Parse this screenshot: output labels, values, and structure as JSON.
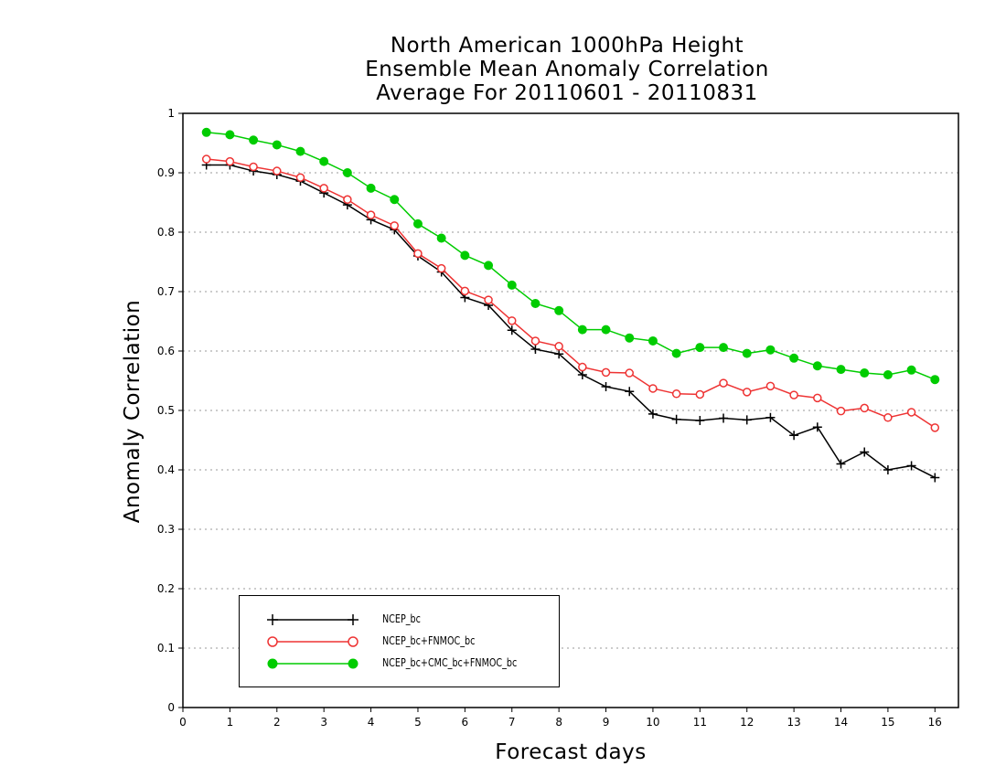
{
  "chart_data": {
    "type": "line",
    "title": [
      "North American 1000hPa Height",
      "Ensemble Mean Anomaly Correlation",
      "Average For 20110601 - 20110831"
    ],
    "xlabel": "Forecast days",
    "ylabel": "Anomaly Correlation",
    "xlim": [
      0,
      16.5
    ],
    "ylim": [
      0,
      1
    ],
    "xticks": [
      "0",
      "1",
      "2",
      "3",
      "4",
      "5",
      "6",
      "7",
      "8",
      "9",
      "10",
      "11",
      "12",
      "13",
      "14",
      "15",
      "16"
    ],
    "yticks": [
      "0",
      "0.1",
      "0.2",
      "0.3",
      "0.4",
      "0.5",
      "0.6",
      "0.7",
      "0.8",
      "0.9",
      "1"
    ],
    "grid": "horizontal dotted",
    "legend_position": "bottom-left",
    "x": [
      0.5,
      1,
      1.5,
      2,
      2.5,
      3,
      3.5,
      4,
      4.5,
      5,
      5.5,
      6,
      6.5,
      7,
      7.5,
      8,
      8.5,
      9,
      9.5,
      10,
      10.5,
      11,
      11.5,
      12,
      12.5,
      13,
      13.5,
      14,
      14.5,
      15,
      15.5,
      16
    ],
    "series": [
      {
        "name": "NCEP_bc",
        "color": "#000000",
        "marker": "plus",
        "values": [
          0.913,
          0.913,
          0.903,
          0.897,
          0.886,
          0.866,
          0.846,
          0.821,
          0.804,
          0.76,
          0.733,
          0.69,
          0.677,
          0.635,
          0.603,
          0.595,
          0.56,
          0.54,
          0.532,
          0.494,
          0.485,
          0.483,
          0.487,
          0.484,
          0.488,
          0.458,
          0.472,
          0.41,
          0.43,
          0.4,
          0.407,
          0.387
        ]
      },
      {
        "name": "NCEP_bc+FNMOC_bc",
        "color": "#ee3333",
        "marker": "open-circle",
        "values": [
          0.923,
          0.919,
          0.91,
          0.903,
          0.892,
          0.874,
          0.855,
          0.829,
          0.811,
          0.764,
          0.739,
          0.701,
          0.686,
          0.651,
          0.617,
          0.608,
          0.573,
          0.564,
          0.563,
          0.537,
          0.528,
          0.527,
          0.546,
          0.531,
          0.541,
          0.526,
          0.521,
          0.499,
          0.504,
          0.488,
          0.497,
          0.471
        ]
      },
      {
        "name": "NCEP_bc+CMC_bc+FNMOC_bc",
        "color": "#00cc00",
        "marker": "filled-circle",
        "values": [
          0.968,
          0.964,
          0.955,
          0.947,
          0.936,
          0.919,
          0.9,
          0.874,
          0.855,
          0.814,
          0.79,
          0.761,
          0.744,
          0.711,
          0.68,
          0.668,
          0.636,
          0.636,
          0.622,
          0.617,
          0.596,
          0.606,
          0.606,
          0.596,
          0.602,
          0.588,
          0.575,
          0.569,
          0.563,
          0.56,
          0.568,
          0.552
        ]
      }
    ]
  }
}
